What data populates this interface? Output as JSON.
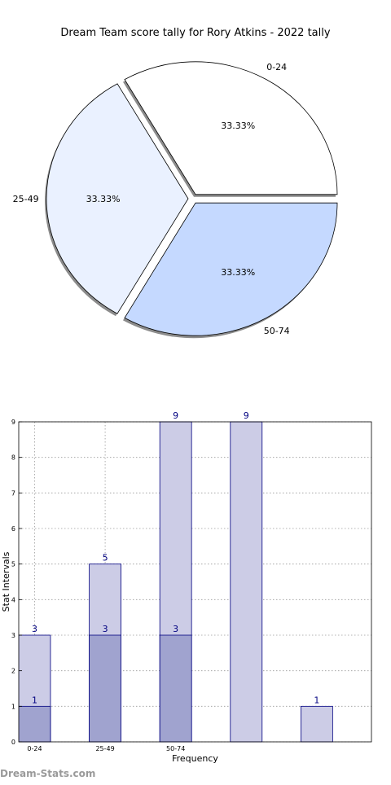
{
  "watermark": "Dream-Stats.com",
  "chart_data": [
    {
      "type": "pie",
      "title": "Dream Team score tally for Rory Atkins - 2022 tally",
      "categories": [
        "0-24",
        "25-49",
        "50-74"
      ],
      "values": [
        33.33,
        33.33,
        33.33
      ],
      "value_labels": [
        "33.33%",
        "33.33%",
        "33.33%"
      ],
      "colors": [
        "#ffffff",
        "#eaf1ff",
        "#c5d9ff"
      ],
      "exploded": true,
      "shadow": true
    },
    {
      "type": "bar",
      "xlabel": "Frequency",
      "ylabel": "Stat Intervals",
      "categories": [
        "0-24",
        "25-49",
        "50-74",
        "",
        ""
      ],
      "ylim": [
        0,
        9
      ],
      "yticks": [
        0,
        1,
        2,
        3,
        4,
        5,
        6,
        7,
        8,
        9
      ],
      "grid": true,
      "series": [
        {
          "values": [
            3,
            5,
            9,
            9,
            1
          ],
          "color": "#ccccE6"
        },
        {
          "values": [
            1,
            3,
            3,
            null,
            null
          ],
          "color": "#a0a3cf"
        }
      ],
      "edge_color": "#000080",
      "label_color": "#000080"
    }
  ]
}
